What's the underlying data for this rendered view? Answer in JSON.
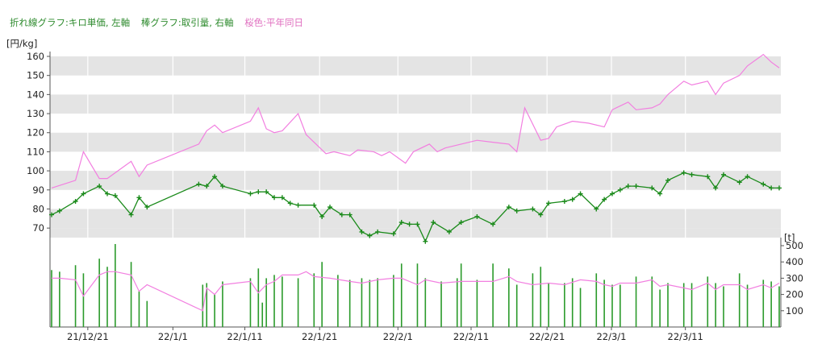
{
  "legend": {
    "line_label": "折れ線グラフ:キロ単価, 左軸",
    "bar_label": "棒グラフ:取引量, 右軸",
    "avg_label": "桜色:平年同日"
  },
  "colors": {
    "legend_green": "#2e8b2e",
    "legend_pink": "#e070c0",
    "price_line": "#1a8a1a",
    "avg_line": "#f27fe0",
    "bars": "#2a9a2a",
    "band": "#e4e4e4"
  },
  "chart_data": {
    "type": "line",
    "left_axis": {
      "unit": "[円/kg]",
      "ylim": [
        65,
        160
      ],
      "ticks": [
        70,
        80,
        90,
        100,
        110,
        120,
        130,
        140,
        150,
        160
      ]
    },
    "right_axis": {
      "unit": "[t]",
      "ylim": [
        0,
        520
      ],
      "ticks": [
        100,
        200,
        300,
        400,
        500
      ]
    },
    "x_ticks": [
      {
        "label": "21/12/21",
        "i": 9.1
      },
      {
        "label": "22/1/1",
        "i": 30.5
      },
      {
        "label": "22/1/11",
        "i": 48.6
      },
      {
        "label": "22/1/21",
        "i": 67.4
      },
      {
        "label": "22/2/1",
        "i": 87.1
      },
      {
        "label": "22/2/11",
        "i": 105.5
      },
      {
        "label": "22/2/21",
        "i": 124.6
      },
      {
        "label": "22/3/1",
        "i": 140.8
      },
      {
        "label": "22/3/11",
        "i": 159.4
      }
    ],
    "series": [
      {
        "name": "キロ単価",
        "axis": "left",
        "points": [
          [
            0,
            77
          ],
          [
            2,
            79
          ],
          [
            6,
            84
          ],
          [
            8,
            88
          ],
          [
            12,
            92
          ],
          [
            14,
            88
          ],
          [
            16,
            87
          ],
          [
            20,
            77
          ],
          [
            22,
            86
          ],
          [
            24,
            81
          ],
          [
            37,
            93
          ],
          [
            39,
            92
          ],
          [
            41,
            97
          ],
          [
            43,
            92
          ],
          [
            50,
            88
          ],
          [
            52,
            89
          ],
          [
            54,
            89
          ],
          [
            56,
            86
          ],
          [
            58,
            86
          ],
          [
            60,
            83
          ],
          [
            62,
            82
          ],
          [
            66,
            82
          ],
          [
            68,
            76
          ],
          [
            70,
            81
          ],
          [
            73,
            77
          ],
          [
            75,
            77
          ],
          [
            78,
            68
          ],
          [
            80,
            66
          ],
          [
            82,
            68
          ],
          [
            86,
            67
          ],
          [
            88,
            73
          ],
          [
            90,
            72
          ],
          [
            92,
            72
          ],
          [
            94,
            63
          ],
          [
            96,
            73
          ],
          [
            100,
            68
          ],
          [
            103,
            73
          ],
          [
            107,
            76
          ],
          [
            111,
            72
          ],
          [
            115,
            81
          ],
          [
            117,
            79
          ],
          [
            121,
            80
          ],
          [
            123,
            77
          ],
          [
            125,
            83
          ],
          [
            129,
            84
          ],
          [
            131,
            85
          ],
          [
            133,
            88
          ],
          [
            137,
            80
          ],
          [
            139,
            85
          ],
          [
            141,
            88
          ],
          [
            143,
            90
          ],
          [
            145,
            92
          ],
          [
            147,
            92
          ],
          [
            151,
            91
          ],
          [
            153,
            88
          ],
          [
            155,
            95
          ],
          [
            159,
            99
          ],
          [
            161,
            98
          ],
          [
            165,
            97
          ],
          [
            167,
            91
          ],
          [
            169,
            98
          ],
          [
            173,
            94
          ],
          [
            175,
            97
          ],
          [
            179,
            93
          ],
          [
            181,
            91
          ],
          [
            183,
            91
          ]
        ]
      },
      {
        "name": "平年同日",
        "axis": "left",
        "points": [
          [
            0,
            91
          ],
          [
            6,
            95
          ],
          [
            8,
            110
          ],
          [
            12,
            96
          ],
          [
            14,
            96
          ],
          [
            20,
            105
          ],
          [
            22,
            97
          ],
          [
            24,
            103
          ],
          [
            37,
            114
          ],
          [
            39,
            121
          ],
          [
            41,
            124
          ],
          [
            43,
            120
          ],
          [
            50,
            126
          ],
          [
            52,
            133
          ],
          [
            54,
            122
          ],
          [
            56,
            120
          ],
          [
            58,
            121
          ],
          [
            62,
            130
          ],
          [
            64,
            119
          ],
          [
            69,
            109
          ],
          [
            71,
            110
          ],
          [
            75,
            108
          ],
          [
            77,
            111
          ],
          [
            81,
            110
          ],
          [
            83,
            108
          ],
          [
            85,
            110
          ],
          [
            89,
            104
          ],
          [
            91,
            110
          ],
          [
            95,
            114
          ],
          [
            97,
            110
          ],
          [
            99,
            112
          ],
          [
            103,
            114
          ],
          [
            107,
            116
          ],
          [
            111,
            115
          ],
          [
            115,
            114
          ],
          [
            117,
            110
          ],
          [
            119,
            133
          ],
          [
            123,
            116
          ],
          [
            125,
            117
          ],
          [
            127,
            123
          ],
          [
            131,
            126
          ],
          [
            135,
            125
          ],
          [
            139,
            123
          ],
          [
            141,
            132
          ],
          [
            145,
            136
          ],
          [
            147,
            132
          ],
          [
            151,
            133
          ],
          [
            153,
            135
          ],
          [
            155,
            140
          ],
          [
            159,
            147
          ],
          [
            161,
            145
          ],
          [
            165,
            147
          ],
          [
            167,
            140
          ],
          [
            169,
            146
          ],
          [
            173,
            150
          ],
          [
            175,
            155
          ],
          [
            179,
            161
          ],
          [
            181,
            157
          ],
          [
            183,
            154
          ]
        ]
      }
    ],
    "bars": {
      "name": "取引量",
      "axis": "right",
      "values": [
        [
          0,
          350
        ],
        [
          2,
          340
        ],
        [
          6,
          380
        ],
        [
          8,
          330
        ],
        [
          12,
          420
        ],
        [
          14,
          370
        ],
        [
          16,
          510
        ],
        [
          20,
          400
        ],
        [
          22,
          220
        ],
        [
          24,
          160
        ],
        [
          38,
          260
        ],
        [
          39,
          270
        ],
        [
          41,
          200
        ],
        [
          43,
          280
        ],
        [
          50,
          300
        ],
        [
          52,
          360
        ],
        [
          53,
          150
        ],
        [
          54,
          300
        ],
        [
          56,
          320
        ],
        [
          58,
          310
        ],
        [
          62,
          300
        ],
        [
          66,
          330
        ],
        [
          68,
          400
        ],
        [
          72,
          320
        ],
        [
          75,
          290
        ],
        [
          78,
          300
        ],
        [
          80,
          290
        ],
        [
          82,
          300
        ],
        [
          86,
          320
        ],
        [
          88,
          390
        ],
        [
          92,
          390
        ],
        [
          94,
          300
        ],
        [
          98,
          280
        ],
        [
          102,
          300
        ],
        [
          103,
          390
        ],
        [
          107,
          290
        ],
        [
          111,
          390
        ],
        [
          115,
          360
        ],
        [
          117,
          260
        ],
        [
          121,
          330
        ],
        [
          123,
          370
        ],
        [
          125,
          270
        ],
        [
          129,
          270
        ],
        [
          131,
          300
        ],
        [
          133,
          240
        ],
        [
          137,
          330
        ],
        [
          139,
          290
        ],
        [
          141,
          260
        ],
        [
          143,
          260
        ],
        [
          147,
          310
        ],
        [
          151,
          310
        ],
        [
          153,
          230
        ],
        [
          155,
          270
        ],
        [
          159,
          270
        ],
        [
          161,
          270
        ],
        [
          165,
          310
        ],
        [
          167,
          270
        ],
        [
          169,
          250
        ],
        [
          173,
          330
        ],
        [
          175,
          260
        ],
        [
          179,
          290
        ],
        [
          181,
          280
        ],
        [
          183,
          250
        ]
      ]
    },
    "avg_volume": {
      "name": "平年同日",
      "axis": "right",
      "points": [
        [
          0,
          300
        ],
        [
          2,
          300
        ],
        [
          6,
          290
        ],
        [
          8,
          190
        ],
        [
          12,
          320
        ],
        [
          14,
          340
        ],
        [
          16,
          340
        ],
        [
          20,
          320
        ],
        [
          22,
          220
        ],
        [
          24,
          260
        ],
        [
          38,
          100
        ],
        [
          39,
          240
        ],
        [
          41,
          200
        ],
        [
          43,
          260
        ],
        [
          50,
          280
        ],
        [
          52,
          210
        ],
        [
          54,
          260
        ],
        [
          56,
          280
        ],
        [
          58,
          320
        ],
        [
          62,
          320
        ],
        [
          64,
          340
        ],
        [
          66,
          310
        ],
        [
          70,
          300
        ],
        [
          75,
          280
        ],
        [
          78,
          270
        ],
        [
          82,
          290
        ],
        [
          86,
          300
        ],
        [
          88,
          300
        ],
        [
          92,
          260
        ],
        [
          94,
          290
        ],
        [
          98,
          270
        ],
        [
          103,
          280
        ],
        [
          111,
          280
        ],
        [
          115,
          310
        ],
        [
          117,
          280
        ],
        [
          121,
          260
        ],
        [
          125,
          270
        ],
        [
          129,
          260
        ],
        [
          133,
          290
        ],
        [
          137,
          280
        ],
        [
          139,
          260
        ],
        [
          141,
          250
        ],
        [
          143,
          270
        ],
        [
          147,
          270
        ],
        [
          151,
          290
        ],
        [
          153,
          250
        ],
        [
          155,
          260
        ],
        [
          159,
          240
        ],
        [
          161,
          230
        ],
        [
          165,
          270
        ],
        [
          167,
          230
        ],
        [
          169,
          260
        ],
        [
          173,
          260
        ],
        [
          175,
          230
        ],
        [
          179,
          260
        ],
        [
          181,
          240
        ],
        [
          183,
          270
        ]
      ]
    }
  }
}
